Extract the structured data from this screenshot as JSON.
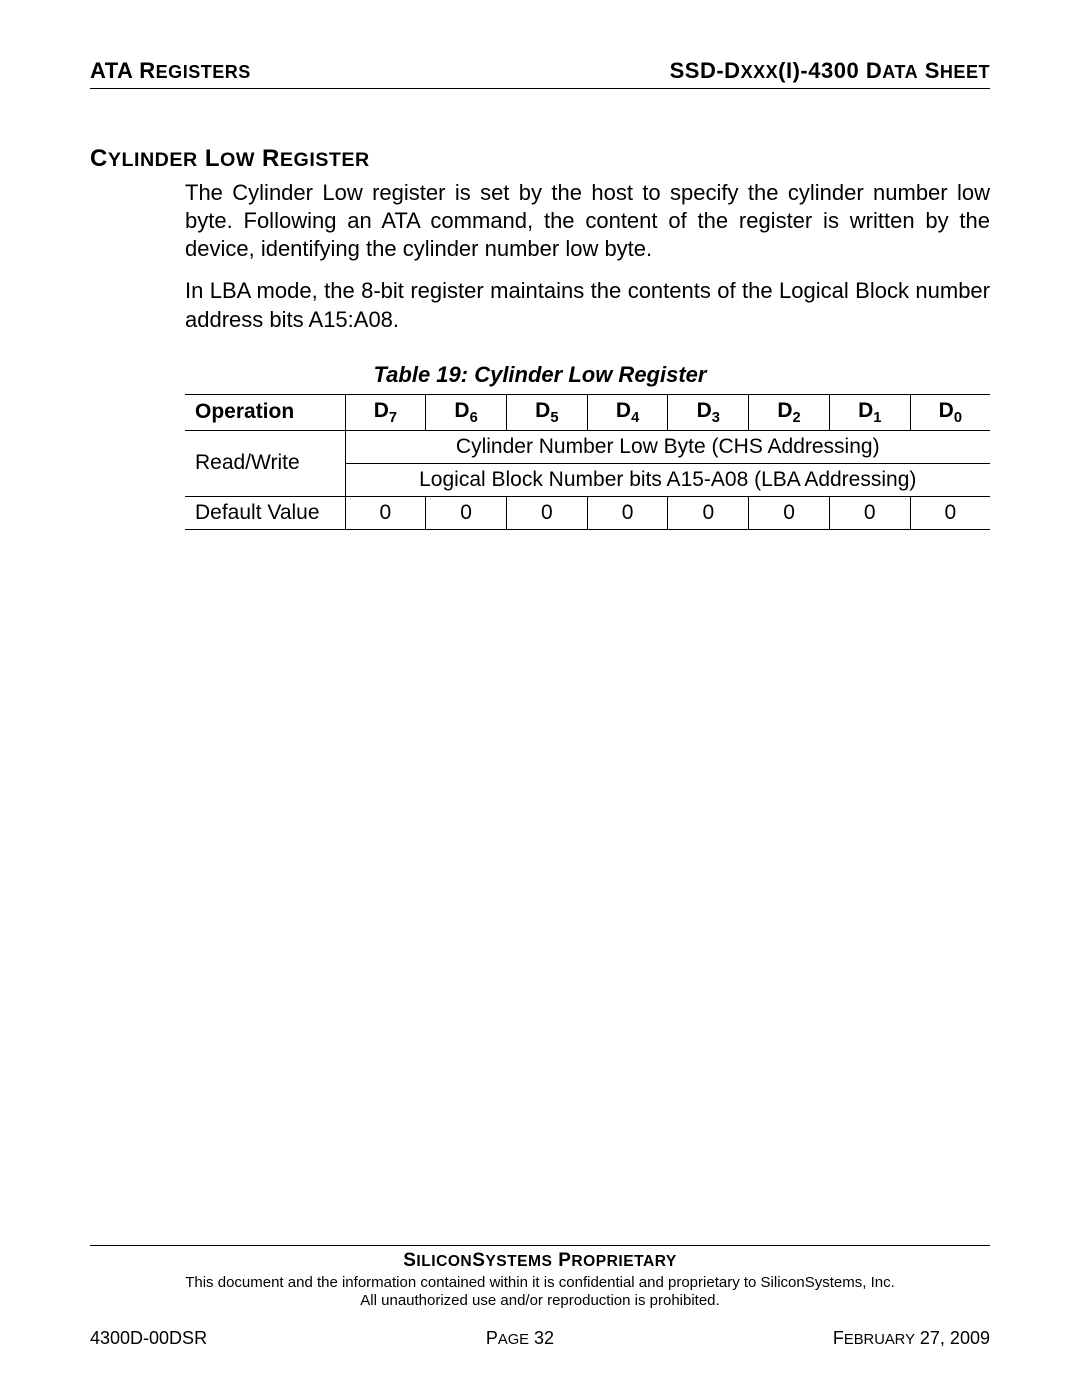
{
  "header": {
    "left_prefix": "ATA R",
    "left_suffix": "EGISTERS",
    "right_prefix_a": "SSD-D",
    "right_mid": "XXX",
    "right_prefix_b": "(I)-4300 D",
    "right_suffix_a": "ATA",
    "right_prefix_c": " S",
    "right_suffix_b": "HEET"
  },
  "section": {
    "title_a": "C",
    "title_b": "YLINDER",
    "title_c": " L",
    "title_d": "OW",
    "title_e": " R",
    "title_f": "EGISTER",
    "para1": "The Cylinder Low register is set by the host to specify the cylinder number low byte. Following an ATA command, the content of the register is written by the device, identifying the cylinder number low byte.",
    "para2": "In LBA mode, the 8-bit register maintains the contents of the Logical Block number address bits A15:A08."
  },
  "table": {
    "caption": "Table 19:  Cylinder Low Register",
    "columns": {
      "operation": "Operation",
      "bits": [
        "D",
        "D",
        "D",
        "D",
        "D",
        "D",
        "D",
        "D"
      ],
      "subs": [
        "7",
        "6",
        "5",
        "4",
        "3",
        "2",
        "1",
        "0"
      ]
    },
    "rows": [
      {
        "op": "Read/Write",
        "span_text_1": "Cylinder Number Low Byte (CHS Addressing)",
        "span_text_2": "Logical Block Number bits A15-A08 (LBA Addressing)"
      },
      {
        "op": "Default Value",
        "values": [
          "0",
          "0",
          "0",
          "0",
          "0",
          "0",
          "0",
          "0"
        ]
      }
    ]
  },
  "footer": {
    "prop_a": "S",
    "prop_b": "ILICON",
    "prop_c": "S",
    "prop_d": "YSTEMS",
    "prop_e": " P",
    "prop_f": "ROPRIETARY",
    "note1": "This document and the information contained within it is confidential and proprietary to SiliconSystems, Inc.",
    "note2": "All unauthorized use and/or reproduction is prohibited.",
    "left": "4300D-00DSR",
    "center_a": "P",
    "center_b": "AGE",
    "center_num": " 32",
    "right_a": "F",
    "right_b": "EBRUARY",
    "right_date": " 27, 2009"
  }
}
